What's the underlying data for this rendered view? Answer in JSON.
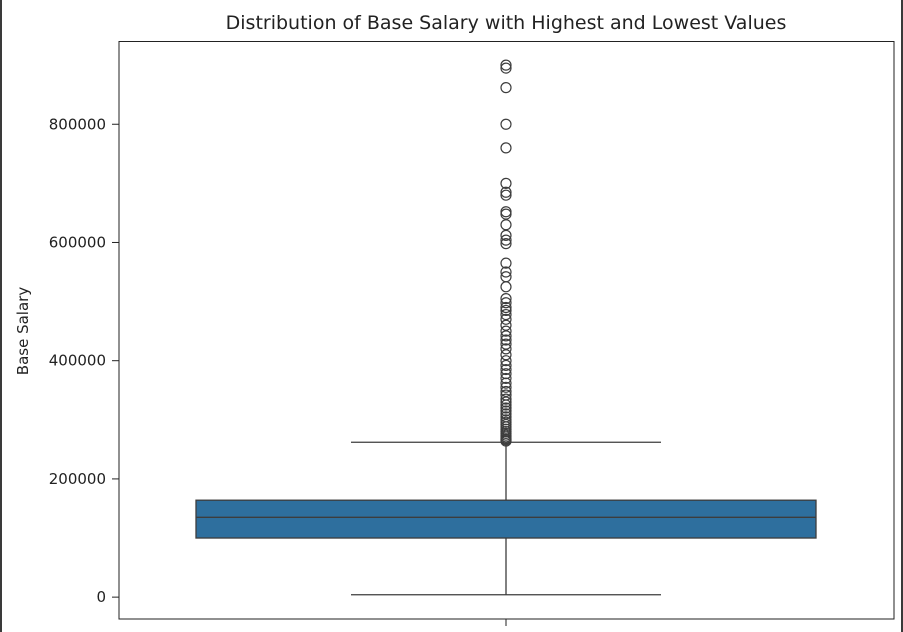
{
  "chart_data": {
    "type": "box",
    "title": "Distribution of Base Salary with Highest and Lowest Values",
    "xlabel": "",
    "ylabel": "Base Salary",
    "ylim": [
      -37000,
      940000
    ],
    "yticks": [
      0,
      200000,
      400000,
      600000,
      800000
    ],
    "ytick_labels": [
      "0",
      "200000",
      "400000",
      "600000",
      "800000"
    ],
    "grid": false,
    "box": {
      "color": "#2e6f9e",
      "whisker_low": 4000,
      "q1": 100000,
      "median": 135000,
      "q3": 164000,
      "whisker_high": 262000
    },
    "outliers": [
      900000,
      895000,
      862000,
      800000,
      760000,
      700000,
      685000,
      680000,
      652000,
      648000,
      630000,
      612000,
      604000,
      598000,
      565000,
      550000,
      542000,
      525000,
      505000,
      498000,
      490000,
      485000,
      478000,
      470000,
      460000,
      450000,
      442000,
      435000,
      428000,
      420000,
      410000,
      400000,
      392000,
      385000,
      378000,
      370000,
      362000,
      355000,
      348000,
      342000,
      335000,
      330000,
      325000,
      320000,
      315000,
      310000,
      305000,
      300000,
      296000,
      292000,
      288000,
      284000,
      280000,
      277000,
      274000,
      271000,
      268000,
      266000,
      264000
    ]
  }
}
